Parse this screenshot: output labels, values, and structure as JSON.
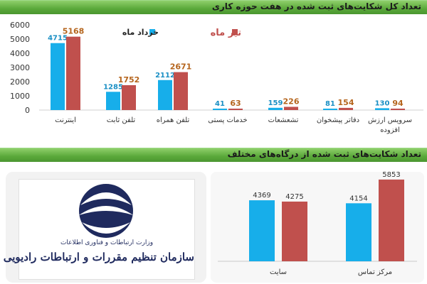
{
  "banner1": {
    "title": "تعداد کل شکایت‌های ثبت شده در هفت حوزه کاری"
  },
  "banner2": {
    "title": "تعداد شکایت‌های ثبت شده از درگاه‌های مختلف"
  },
  "logo": {
    "line1": "وزارت ارتباطات و فناوری اطلاعات",
    "line2": "سازمان تنظیم مقررات و ارتباطات رادیویی"
  },
  "colors": {
    "blue": "#17aeea",
    "red": "#c0504d",
    "orange_label": "#b5651d",
    "green": "#5aa83a"
  },
  "chart_data": [
    {
      "type": "bar",
      "title": "تعداد کل شکایت‌های ثبت شده در هفت حوزه کاری",
      "categories": [
        "اینترنت",
        "تلفن ثابت",
        "تلفن همراه",
        "خدمات پستی",
        "تشعشعات",
        "دفاتر پیشخوان",
        "سرویس ارزش افزوده"
      ],
      "series": [
        {
          "name": "خرداد ماه",
          "values": [
            4715,
            1285,
            2112,
            41,
            159,
            81,
            130
          ]
        },
        {
          "name": "تیر ماه",
          "values": [
            5168,
            1752,
            2671,
            63,
            226,
            154,
            94
          ]
        }
      ],
      "yticks": [
        "0",
        "1000",
        "2000",
        "3000",
        "4000",
        "5000",
        "6000"
      ],
      "ylim": [
        0,
        6000
      ],
      "legend": "top",
      "grid": false
    },
    {
      "type": "bar",
      "title": "تعداد شکایت‌های ثبت شده از درگاه‌های مختلف",
      "categories": [
        "سایت",
        "مرکز تماس"
      ],
      "series": [
        {
          "values": [
            4369,
            4154
          ]
        },
        {
          "values": [
            4275,
            5853
          ]
        }
      ],
      "ylim": [
        0,
        6000
      ],
      "grid": false
    }
  ]
}
